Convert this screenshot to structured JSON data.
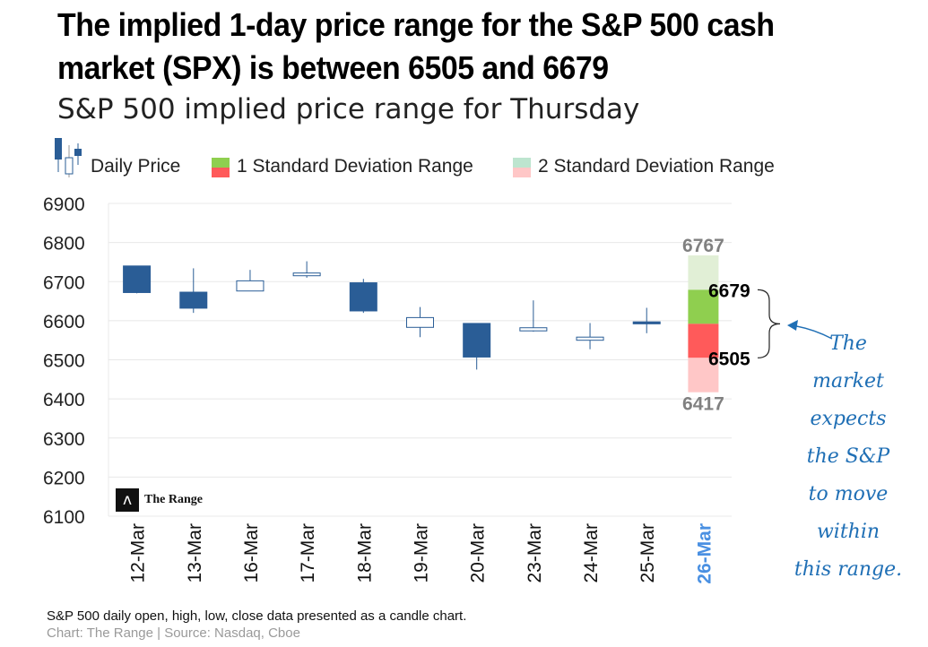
{
  "headline_line1": "The implied 1-day price range for the S&P 500 cash",
  "headline_line2": "market (SPX) is between 6505 and 6679",
  "subtitle": "S&P 500 implied price range for Thursday",
  "legend": {
    "daily_price": "Daily Price",
    "one_sd": "1 Standard Deviation  Range",
    "two_sd": "2 Standard Deviation  Range"
  },
  "footnote": "S&P 500 daily open, high, low, close data presented as a candle chart.",
  "credit": "Chart: The Range | Source: Nasdaq, Cboe",
  "logo_text": "The Range",
  "annotation_lines": [
    "The",
    "market",
    "expects",
    "the S&P",
    "to move",
    "within",
    "this range."
  ],
  "colors": {
    "down_candle": "#2a5d96",
    "up_candle": "#ffffff",
    "one_sd_up": "#8fcf4f",
    "one_sd_down": "#ff5a5a",
    "two_sd_up": "#e1efd6",
    "two_sd_down": "#ffc7c7",
    "grid": "#e8e8e8",
    "projection_label": "#4a90e2",
    "annotation": "#1f6fb5"
  },
  "chart_data": {
    "type": "candlestick",
    "title": "S&P 500 implied price range for Thursday",
    "ylim": [
      6100,
      6900
    ],
    "yticks": [
      6100,
      6200,
      6300,
      6400,
      6500,
      6600,
      6700,
      6800,
      6900
    ],
    "categories": [
      "12-Mar",
      "13-Mar",
      "16-Mar",
      "17-Mar",
      "18-Mar",
      "19-Mar",
      "20-Mar",
      "23-Mar",
      "24-Mar",
      "25-Mar",
      "26-Mar"
    ],
    "candles": [
      {
        "date": "12-Mar",
        "open": 6740,
        "high": 6740,
        "low": 6670,
        "close": 6672
      },
      {
        "date": "13-Mar",
        "open": 6673,
        "high": 6734,
        "low": 6620,
        "close": 6632
      },
      {
        "date": "16-Mar",
        "open": 6676,
        "high": 6730,
        "low": 6676,
        "close": 6702
      },
      {
        "date": "17-Mar",
        "open": 6715,
        "high": 6752,
        "low": 6710,
        "close": 6722
      },
      {
        "date": "18-Mar",
        "open": 6697,
        "high": 6707,
        "low": 6620,
        "close": 6625
      },
      {
        "date": "19-Mar",
        "open": 6583,
        "high": 6635,
        "low": 6558,
        "close": 6608
      },
      {
        "date": "20-Mar",
        "open": 6593,
        "high": 6593,
        "low": 6475,
        "close": 6507
      },
      {
        "date": "23-Mar",
        "open": 6574,
        "high": 6652,
        "low": 6572,
        "close": 6582
      },
      {
        "date": "24-Mar",
        "open": 6550,
        "high": 6594,
        "low": 6527,
        "close": 6558
      },
      {
        "date": "25-Mar",
        "open": 6597,
        "high": 6633,
        "low": 6568,
        "close": 6592
      }
    ],
    "projection": {
      "date": "26-Mar",
      "mid": 6592,
      "one_sd_high": 6679,
      "one_sd_low": 6505,
      "two_sd_high": 6767,
      "two_sd_low": 6417
    }
  }
}
